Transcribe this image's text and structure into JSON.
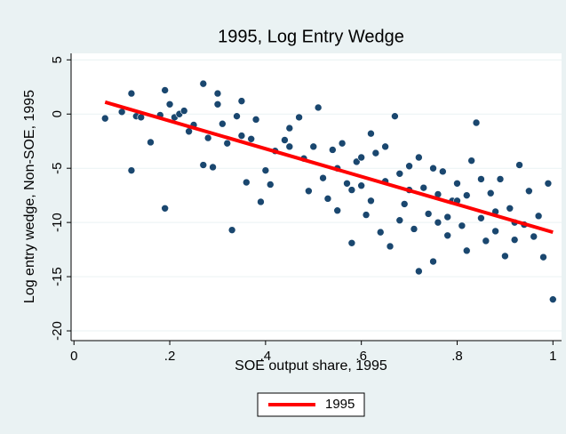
{
  "chart_data": {
    "type": "scatter",
    "title": "1995, Log Entry Wedge",
    "x_label": "SOE output share, 1995",
    "y_label": "Log entry wedge, Non-SOE, 1995",
    "xlim": [
      -0.006,
      1.018
    ],
    "ylim": [
      -20.9,
      5.6
    ],
    "xticks": [
      0,
      {
        "value": 0.2,
        "label": ".2"
      },
      {
        "value": 0.4,
        "label": ".4"
      },
      {
        "value": 0.6,
        "label": ".6"
      },
      {
        "value": 0.8,
        "label": ".8"
      },
      1
    ],
    "yticks": [
      5,
      0,
      -5,
      -10,
      -15,
      -20
    ],
    "grid": true,
    "points": {
      "color": "#1a476f",
      "x": [
        0.065,
        0.1,
        0.12,
        0.12,
        0.13,
        0.14,
        0.16,
        0.18,
        0.19,
        0.19,
        0.2,
        0.21,
        0.22,
        0.23,
        0.24,
        0.27,
        0.27,
        0.28,
        0.29,
        0.3,
        0.3,
        0.31,
        0.32,
        0.33,
        0.34,
        0.35,
        0.36,
        0.37,
        0.38,
        0.39,
        0.4,
        0.41,
        0.42,
        0.44,
        0.45,
        0.47,
        0.48,
        0.49,
        0.5,
        0.51,
        0.52,
        0.53,
        0.54,
        0.55,
        0.56,
        0.57,
        0.58,
        0.59,
        0.6,
        0.61,
        0.62,
        0.63,
        0.64,
        0.65,
        0.66,
        0.67,
        0.68,
        0.69,
        0.7,
        0.71,
        0.72,
        0.73,
        0.74,
        0.75,
        0.76,
        0.77,
        0.78,
        0.79,
        0.8,
        0.81,
        0.82,
        0.83,
        0.84,
        0.85,
        0.86,
        0.87,
        0.88,
        0.89,
        0.9,
        0.91,
        0.92,
        0.93,
        0.94,
        0.95,
        0.96,
        0.97,
        0.98,
        0.99,
        1.0,
        0.6,
        0.65,
        0.7,
        0.75,
        0.8,
        0.85,
        0.62,
        0.68,
        0.78,
        0.82,
        0.88,
        0.72,
        0.55,
        0.45,
        0.35,
        0.25,
        0.92,
        0.76,
        0.58
      ],
      "y": [
        -0.4,
        0.2,
        1.9,
        -5.2,
        -0.2,
        -0.3,
        -2.6,
        -0.1,
        2.2,
        -8.7,
        0.9,
        -0.3,
        0,
        0.3,
        -1.6,
        2.8,
        -4.7,
        -2.2,
        -4.9,
        1.9,
        0.9,
        -0.9,
        -2.7,
        -10.7,
        -0.2,
        1.2,
        -6.3,
        -2.3,
        -0.5,
        -8.1,
        -5.2,
        -6.5,
        -3.4,
        -2.4,
        -1.3,
        -0.3,
        -4.1,
        -7.1,
        -3.0,
        0.6,
        -5.9,
        -7.8,
        -3.3,
        -8.9,
        -2.7,
        -6.4,
        -11.9,
        -4.4,
        -6.6,
        -9.3,
        -1.8,
        -3.6,
        -10.9,
        -6.2,
        -12.2,
        -0.2,
        -5.5,
        -8.3,
        -4.8,
        -10.6,
        -14.5,
        -6.8,
        -9.2,
        -13.6,
        -7.4,
        -5.3,
        -11.2,
        -8.0,
        -6.4,
        -10.3,
        -12.6,
        -4.3,
        -0.8,
        -9.6,
        -11.7,
        -7.3,
        -10.8,
        -6.0,
        -13.1,
        -8.7,
        -11.6,
        -4.7,
        -10.2,
        -7.1,
        -11.3,
        -9.4,
        -13.2,
        -6.4,
        -17.1,
        -4,
        -3,
        -7,
        -5,
        -8,
        -6,
        -8,
        -9.8,
        -9.5,
        -7.5,
        -9,
        -4,
        -5,
        -3,
        -2,
        -1,
        -10,
        -10,
        -7
      ]
    },
    "fit": {
      "name": "1995",
      "color": "#ff0000",
      "x": [
        0.065,
        1.0
      ],
      "y": [
        1.1,
        -10.9
      ]
    }
  }
}
